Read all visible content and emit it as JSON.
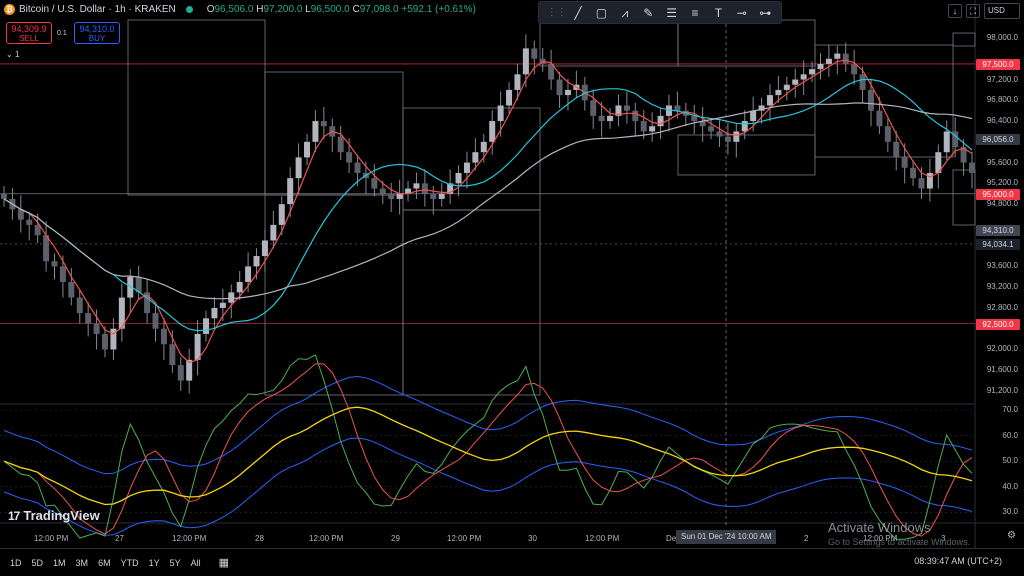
{
  "header": {
    "title": "Bitcoin / U.S. Dollar · 1h · KRAKEN",
    "ohlc": {
      "o_label": "O",
      "o": "96,506.0",
      "h_label": "H",
      "h": "97,200.0",
      "l_label": "L",
      "l": "96,500.0",
      "c_label": "C",
      "c": "97,098.0",
      "change": "+592.1 (+0.61%)"
    }
  },
  "trade": {
    "sell_price": "94,309.9",
    "sell_label": "SELL",
    "buy_price": "94,310.0",
    "buy_label": "BUY",
    "spread": "0.1",
    "qty": "1"
  },
  "toolbar": {
    "tools": [
      "line-tool-icon",
      "rectangle-tool-icon",
      "path-tool-icon",
      "brush-tool-icon",
      "fib-tool-icon",
      "channel-tool-icon",
      "text-tool-icon",
      "horizontal-ray-icon",
      "horizontal-line-icon"
    ]
  },
  "topright": {
    "currency": "USD"
  },
  "price_axis": {
    "ticks": [
      "98,000.0",
      "97,200.0",
      "96,800.0",
      "96,400.0",
      "95,600.0",
      "95,200.0",
      "94,800.0",
      "93,600.0",
      "93,200.0",
      "92,800.0",
      "92,000.0",
      "91,600.0",
      "91,200.0"
    ],
    "labels": {
      "level_97500": "97,500.0",
      "level_96056": "96,056.0",
      "level_95000": "95,000.0",
      "level_94310": "94,310.0",
      "level_94034": "94,034.1",
      "level_92500": "92,500.0"
    }
  },
  "indicator_axis": {
    "ticks": [
      "70.0",
      "60.0",
      "50.0",
      "40.0",
      "30.0"
    ]
  },
  "time_axis": {
    "ticks": [
      "12:00 PM",
      "27",
      "12:00 PM",
      "28",
      "12:00 PM",
      "29",
      "12:00 PM",
      "30",
      "12:00 PM",
      "Dec",
      "2",
      "12:00 PM",
      "3"
    ],
    "crosshair": "Sun 01 Dec '24   10:00 AM"
  },
  "branding": {
    "logo": "TradingView",
    "logo_mark": "17"
  },
  "watermark": {
    "line1": "Activate Windows",
    "line2": "Go to Settings to activate Windows."
  },
  "bottom_bar": {
    "ranges": [
      "1D",
      "5D",
      "1M",
      "3M",
      "6M",
      "YTD",
      "1Y",
      "5Y",
      "All"
    ],
    "clock": "08:39:47 AM (UTC+2)"
  },
  "colors": {
    "up": "#868993",
    "down": "#868993",
    "ema_fast": "#ef5350",
    "ema_mid": "#26c6da",
    "ema_slow": "#b2b5be",
    "level_red": "#f23645",
    "rsi_green": "#4caf50",
    "rsi_red": "#ef5350",
    "rsi_yellow": "#f5d60a",
    "band_blue": "#2962ff"
  }
}
